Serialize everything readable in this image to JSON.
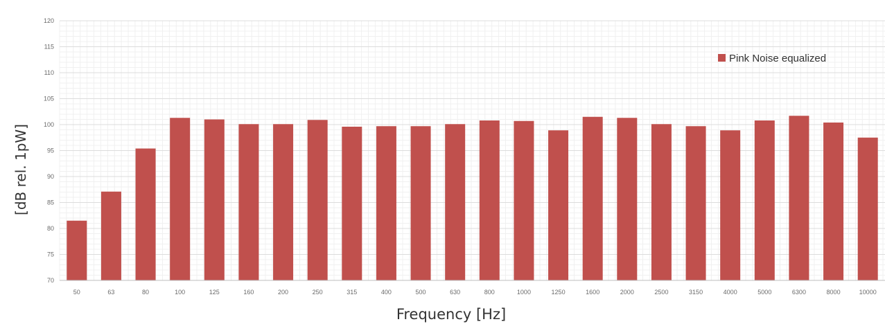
{
  "chart_data": {
    "type": "bar",
    "categories": [
      "50",
      "63",
      "80",
      "100",
      "125",
      "160",
      "200",
      "250",
      "315",
      "400",
      "500",
      "630",
      "800",
      "1000",
      "1250",
      "1600",
      "2000",
      "2500",
      "3150",
      "4000",
      "5000",
      "6300",
      "8000",
      "10000"
    ],
    "series": [
      {
        "name": "Pink Noise equalized",
        "values": [
          81.5,
          87.1,
          95.4,
          101.3,
          101.0,
          100.1,
          100.1,
          100.9,
          99.6,
          99.7,
          99.7,
          100.1,
          100.8,
          100.7,
          98.9,
          101.5,
          101.3,
          100.1,
          99.7,
          98.9,
          100.8,
          101.7,
          100.4,
          97.5
        ],
        "color": "#c0504d"
      }
    ],
    "xlabel": "Frequency [Hz]",
    "ylabel": "[dB rel. 1pW]",
    "ylim": [
      70,
      120
    ],
    "yticks": [
      "70",
      "75",
      "80",
      "85",
      "90",
      "95",
      "100",
      "105",
      "110",
      "115",
      "120"
    ],
    "grid": true,
    "legend_position": "top-right"
  }
}
